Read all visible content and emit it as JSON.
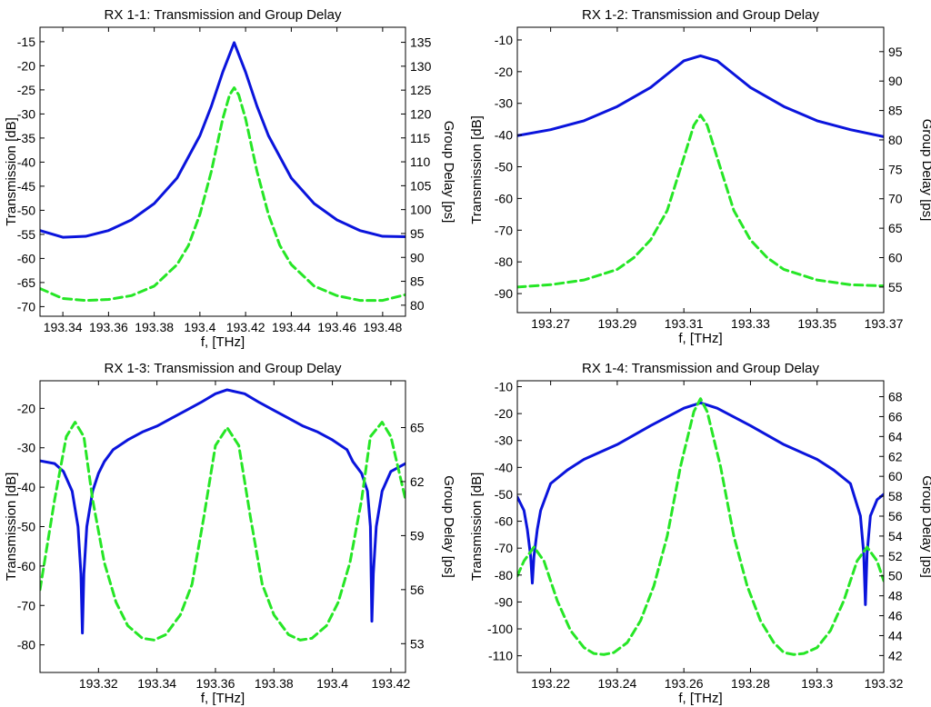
{
  "colors": {
    "transmission": "#0a14dc",
    "group_delay": "#26e626",
    "axis": "#000000",
    "background": "#ffffff"
  },
  "chart_data": [
    {
      "type": "line",
      "title": "RX 1-1: Transmission and Group Delay",
      "xlabel": "f, [THz]",
      "ylabel_left": "Transmission [dB]",
      "ylabel_right": "Group Delay [ps]",
      "xlim": [
        193.33,
        193.49
      ],
      "ylim_left": [
        -72,
        -12
      ],
      "ylim_right": [
        77.69,
        138.15
      ],
      "xticks": [
        193.34,
        193.36,
        193.38,
        193.4,
        193.42,
        193.44,
        193.46,
        193.48
      ],
      "xtick_labels": [
        "193.34",
        "193.36",
        "193.38",
        "193.4",
        "193.42",
        "193.44",
        "193.46",
        "193.48"
      ],
      "yticks_left": [
        -15,
        -20,
        -25,
        -30,
        -35,
        -40,
        -45,
        -50,
        -55,
        -60,
        -65,
        -70
      ],
      "yticks_right": [
        135,
        130,
        125,
        120,
        115,
        110,
        105,
        100,
        95,
        90,
        85,
        80
      ],
      "series": [
        {
          "axis": "left",
          "style": "solid",
          "x": [
            193.33,
            193.34,
            193.35,
            193.36,
            193.37,
            193.38,
            193.39,
            193.4,
            193.405,
            193.41,
            193.415,
            193.42,
            193.425,
            193.43,
            193.44,
            193.45,
            193.46,
            193.47,
            193.48,
            193.49
          ],
          "values": [
            -54.2,
            -55.6,
            -55.4,
            -54.2,
            -52.0,
            -48.6,
            -43.3,
            -34.5,
            -28.4,
            -21.3,
            -15.2,
            -21.3,
            -28.4,
            -34.5,
            -43.3,
            -48.6,
            -52.0,
            -54.2,
            -55.4,
            -55.5
          ]
        },
        {
          "axis": "right",
          "style": "dashed",
          "x": [
            193.33,
            193.34,
            193.35,
            193.36,
            193.37,
            193.38,
            193.39,
            193.395,
            193.4,
            193.405,
            193.41,
            193.413,
            193.415,
            193.417,
            193.42,
            193.425,
            193.43,
            193.435,
            193.44,
            193.45,
            193.46,
            193.47,
            193.48,
            193.49
          ],
          "values": [
            83.5,
            81.4,
            81.0,
            81.2,
            82.0,
            84.0,
            88.5,
            92.5,
            99.0,
            108.0,
            119.0,
            124.0,
            125.5,
            124.0,
            119.0,
            108.0,
            99.0,
            92.5,
            88.5,
            84.0,
            82.0,
            81.0,
            81.0,
            82.2
          ]
        }
      ]
    },
    {
      "type": "line",
      "title": "RX 1-2: Transmission and Group Delay",
      "xlabel": "f, [THz]",
      "ylabel_left": "Transmission [dB]",
      "ylabel_right": "Group Delay [ps]",
      "xlim": [
        193.26,
        193.37
      ],
      "ylim_left": [
        -96,
        -6
      ],
      "ylim_right": [
        50.66,
        99.14
      ],
      "xticks": [
        193.27,
        193.29,
        193.31,
        193.33,
        193.35,
        193.37
      ],
      "xtick_labels": [
        "193.27",
        "193.29",
        "193.31",
        "193.33",
        "193.35",
        "193.37"
      ],
      "yticks_left": [
        -10,
        -20,
        -30,
        -40,
        -50,
        -60,
        -70,
        -80,
        -90
      ],
      "yticks_right": [
        95,
        90,
        85,
        80,
        75,
        70,
        65,
        60,
        55
      ],
      "series": [
        {
          "axis": "left",
          "style": "solid",
          "x": [
            193.26,
            193.27,
            193.28,
            193.29,
            193.3,
            193.305,
            193.31,
            193.315,
            193.32,
            193.325,
            193.33,
            193.34,
            193.35,
            193.36,
            193.37
          ],
          "values": [
            -40.2,
            -38.3,
            -35.5,
            -31.0,
            -25.0,
            -20.8,
            -16.6,
            -15.0,
            -16.6,
            -20.8,
            -25.0,
            -31.0,
            -35.5,
            -38.3,
            -40.5
          ]
        },
        {
          "axis": "right",
          "style": "dashed",
          "x": [
            193.26,
            193.27,
            193.28,
            193.29,
            193.295,
            193.3,
            193.305,
            193.31,
            193.313,
            193.315,
            193.317,
            193.32,
            193.325,
            193.33,
            193.335,
            193.34,
            193.35,
            193.36,
            193.37
          ],
          "values": [
            55.0,
            55.4,
            56.2,
            58.0,
            60.0,
            63.0,
            68.0,
            77.0,
            82.5,
            84.2,
            82.5,
            77.0,
            68.0,
            63.0,
            60.0,
            58.0,
            56.2,
            55.4,
            55.2
          ]
        }
      ]
    },
    {
      "type": "line",
      "title": "RX 1-3: Transmission and Group Delay",
      "xlabel": "f, [THz]",
      "ylabel_left": "Transmission [dB]",
      "ylabel_right": "Group Delay [ps]",
      "xlim": [
        193.3,
        193.425
      ],
      "ylim_left": [
        -87,
        -13
      ],
      "ylim_right": [
        51.4,
        67.6
      ],
      "xticks": [
        193.32,
        193.34,
        193.36,
        193.38,
        193.4,
        193.42
      ],
      "xtick_labels": [
        "193.32",
        "193.34",
        "193.36",
        "193.38",
        "193.4",
        "193.42"
      ],
      "yticks_left": [
        -20,
        -30,
        -40,
        -50,
        -60,
        -70,
        -80
      ],
      "yticks_right": [
        65,
        62,
        59,
        56,
        53
      ],
      "ytick_labels_right": [
        "65",
        "62",
        "59",
        "56",
        "53"
      ],
      "series": [
        {
          "axis": "left",
          "style": "solid",
          "x": [
            193.3,
            193.305,
            193.308,
            193.311,
            193.313,
            193.314,
            193.3145,
            193.315,
            193.316,
            193.318,
            193.32,
            193.322,
            193.325,
            193.33,
            193.335,
            193.34,
            193.345,
            193.35,
            193.355,
            193.36,
            193.364,
            193.37,
            193.375,
            193.38,
            193.385,
            193.39,
            193.395,
            193.4,
            193.405,
            193.407,
            193.41,
            193.412,
            193.413,
            193.4135,
            193.414,
            193.415,
            193.417,
            193.42,
            193.425
          ],
          "values": [
            -33.3,
            -34.0,
            -36.0,
            -41.0,
            -50.0,
            -62.0,
            -77.0,
            -62.0,
            -50.0,
            -41.0,
            -36.5,
            -33.5,
            -30.5,
            -28.0,
            -26.0,
            -24.5,
            -22.5,
            -20.5,
            -18.5,
            -16.3,
            -15.3,
            -16.3,
            -18.5,
            -20.5,
            -22.5,
            -24.5,
            -26.0,
            -28.0,
            -30.5,
            -33.5,
            -36.5,
            -41.0,
            -50.0,
            -74.0,
            -62.0,
            -50.0,
            -41.0,
            -36.0,
            -34.0
          ]
        },
        {
          "axis": "right",
          "style": "dashed",
          "x": [
            193.3,
            193.305,
            193.309,
            193.312,
            193.315,
            193.318,
            193.322,
            193.326,
            193.33,
            193.335,
            193.339,
            193.343,
            193.348,
            193.352,
            193.356,
            193.36,
            193.364,
            193.368,
            193.372,
            193.376,
            193.38,
            193.385,
            193.389,
            193.393,
            193.398,
            193.402,
            193.406,
            193.41,
            193.413,
            193.417,
            193.42,
            193.425
          ],
          "values": [
            56.0,
            61.0,
            64.5,
            65.3,
            64.5,
            61.0,
            57.5,
            55.3,
            54.0,
            53.3,
            53.2,
            53.5,
            54.6,
            56.3,
            60.0,
            64.0,
            65.0,
            64.0,
            60.0,
            56.3,
            54.6,
            53.5,
            53.2,
            53.3,
            54.0,
            55.3,
            57.5,
            61.0,
            64.5,
            65.3,
            64.5,
            61.0
          ]
        }
      ]
    },
    {
      "type": "line",
      "title": "RX 1-4: Transmission and Group Delay",
      "xlabel": "f, [THz]",
      "ylabel_left": "Transmission [dB]",
      "ylabel_right": "Group Delay [ps]",
      "xlim": [
        193.21,
        193.32
      ],
      "ylim_left": [
        -116.2,
        -7.8
      ],
      "ylim_right": [
        40.3,
        69.6
      ],
      "xticks": [
        193.22,
        193.24,
        193.26,
        193.28,
        193.3,
        193.32
      ],
      "xtick_labels": [
        "193.22",
        "193.24",
        "193.26",
        "193.28",
        "193.3",
        "193.32"
      ],
      "yticks_left": [
        -10,
        -20,
        -30,
        -40,
        -50,
        -60,
        -70,
        -80,
        -90,
        -100,
        -110
      ],
      "yticks_right": [
        68,
        66,
        64,
        62,
        60,
        58,
        56,
        54,
        52,
        50,
        48,
        46,
        44,
        42
      ],
      "series": [
        {
          "axis": "left",
          "style": "solid",
          "x": [
            193.21,
            193.212,
            193.213,
            193.214,
            193.2145,
            193.215,
            193.216,
            193.217,
            193.22,
            193.225,
            193.23,
            193.24,
            193.25,
            193.26,
            193.265,
            193.27,
            193.28,
            193.29,
            193.3,
            193.305,
            193.31,
            193.313,
            193.314,
            193.3145,
            193.315,
            193.316,
            193.318,
            193.32
          ],
          "values": [
            -51.0,
            -56.0,
            -63.0,
            -73.0,
            -83.0,
            -73.0,
            -63.0,
            -56.0,
            -46.0,
            -41.0,
            -37.0,
            -31.5,
            -24.5,
            -18.0,
            -16.0,
            -18.0,
            -24.5,
            -31.5,
            -37.0,
            -41.0,
            -46.0,
            -58.0,
            -72.0,
            -91.0,
            -72.0,
            -58.0,
            -52.0,
            -50.0
          ]
        },
        {
          "axis": "right",
          "style": "dashed",
          "x": [
            193.21,
            193.212,
            193.215,
            193.218,
            193.222,
            193.226,
            193.23,
            193.233,
            193.236,
            193.239,
            193.243,
            193.247,
            193.251,
            193.255,
            193.259,
            193.263,
            193.265,
            193.267,
            193.271,
            193.275,
            193.279,
            193.283,
            193.287,
            193.29,
            193.293,
            193.296,
            193.3,
            193.304,
            193.308,
            193.312,
            193.315,
            193.318,
            193.32
          ],
          "values": [
            50.0,
            51.5,
            52.9,
            51.5,
            47.5,
            44.5,
            42.8,
            42.2,
            42.1,
            42.3,
            43.3,
            45.5,
            49.0,
            54.0,
            61.0,
            66.5,
            67.8,
            66.5,
            61.0,
            54.0,
            49.0,
            45.5,
            43.3,
            42.3,
            42.1,
            42.2,
            42.8,
            44.5,
            47.5,
            51.5,
            52.9,
            51.5,
            49.5
          ]
        }
      ]
    }
  ]
}
